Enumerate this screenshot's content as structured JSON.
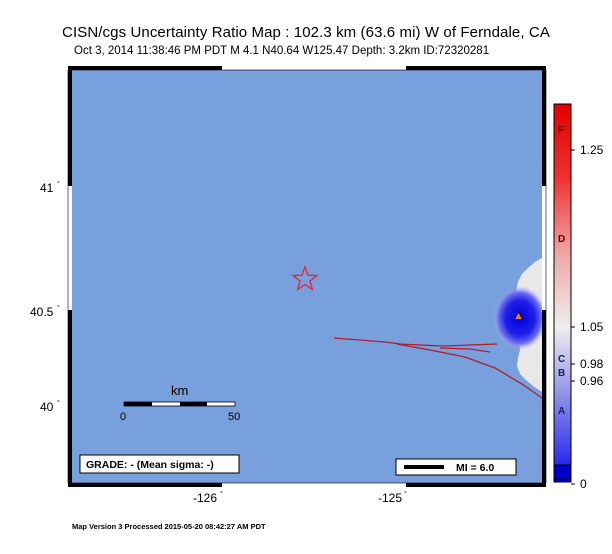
{
  "header": {
    "title": "CISN/cgs Uncertainty Ratio Map : 102.3 km (63.6 mi) W of Ferndale, CA",
    "subtitle": "Oct  3, 2014 11:38:46 PM PDT   M 4.1   N40.64 W125.47   Depth: 3.2km   ID:72320281"
  },
  "map": {
    "lat_ticks": [
      {
        "label": "41",
        "value": 41.0
      },
      {
        "label": "40.5",
        "value": 40.5
      },
      {
        "label": "40",
        "value": 40.0
      }
    ],
    "lon_ticks": [
      {
        "label": "-126",
        "value": -126.0
      },
      {
        "label": "-125",
        "value": -125.0
      }
    ],
    "lat_range": [
      39.9,
      41.47
    ],
    "lon_range": [
      -126.28,
      -124.0
    ],
    "epicenter": {
      "lat": 40.64,
      "lon": -125.47
    },
    "colors": {
      "ocean": "#78a0dc",
      "land": "#e8e8e8",
      "fault": "#b01c2c",
      "epicenter": "#e0283c",
      "station": "#f07a1c"
    }
  },
  "scalebar": {
    "title": "km",
    "start_label": "0",
    "end_label": "50"
  },
  "grade": {
    "text": "GRADE: - (Mean sigma: -)"
  },
  "mi_legend": {
    "text": "MI = 6.0"
  },
  "colorbar": {
    "letters": [
      {
        "label": "F",
        "value": 1.33
      },
      {
        "label": "D",
        "value": 1.15
      },
      {
        "label": "C",
        "value": 1.0
      },
      {
        "label": "B",
        "value": 0.965
      },
      {
        "label": "A",
        "value": 0.93
      }
    ],
    "ticks": [
      {
        "label": "1.25",
        "value": 1.25
      },
      {
        "label": "1.05",
        "value": 1.05
      },
      {
        "label": "0.98",
        "value": 0.98
      },
      {
        "label": "0.96",
        "value": 0.96
      },
      {
        "label": "0",
        "value": 0
      }
    ]
  },
  "footer": {
    "text": "Map Version 3 Processed 2015-05-20 08:42:27 AM PDT"
  }
}
